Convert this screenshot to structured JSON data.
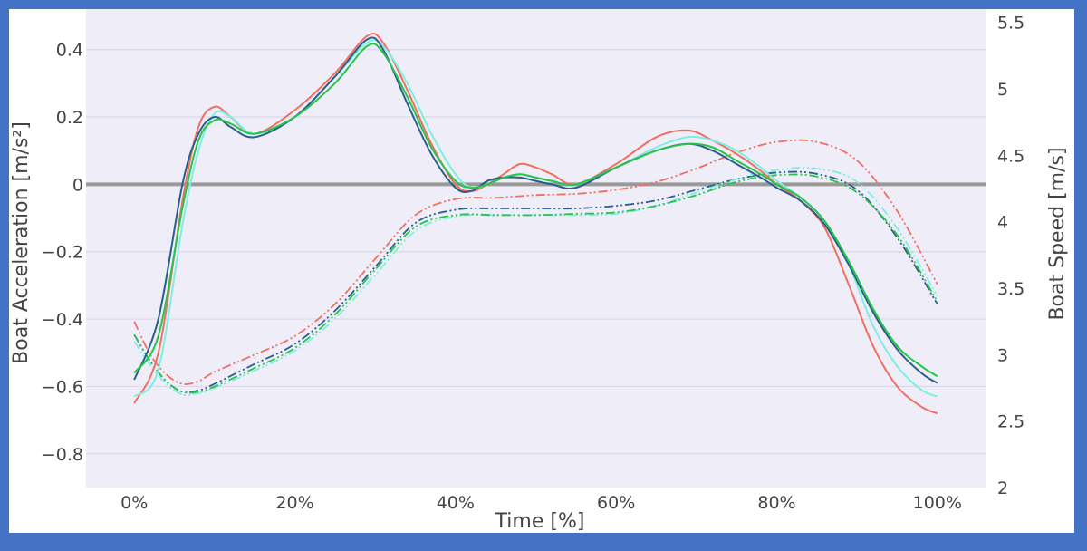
{
  "chart_data": {
    "type": "line",
    "title": "",
    "xlabel": "Time [%]",
    "ylabel_left": "Boat Acceleration [m/s²]",
    "ylabel_right": "Boat Speed [m/s]",
    "x_ticks": [
      "0%",
      "20%",
      "40%",
      "60%",
      "80%",
      "100%"
    ],
    "y_left_ticks": [
      "0.4",
      "0.2",
      "0",
      "−0.2",
      "−0.4",
      "−0.6",
      "−0.8"
    ],
    "y_right_ticks": [
      "5.5",
      "5",
      "4.5",
      "4",
      "3.5",
      "3",
      "2.5",
      "2"
    ],
    "xlim": [
      -6,
      106
    ],
    "ylim_left": [
      -0.9,
      0.52
    ],
    "ylim_right": [
      2.0,
      5.6
    ],
    "grid": true,
    "zero_line_color": "#999999",
    "plot_bg": "#eeedf8",
    "series_acceleration": [
      {
        "color": "#ef6f63",
        "x": [
          0,
          3,
          6,
          8,
          10,
          12,
          15,
          20,
          25,
          29,
          31,
          34,
          37,
          40,
          42,
          44,
          46,
          48,
          50,
          52,
          55,
          60,
          65,
          69,
          72,
          75,
          78,
          80,
          83,
          86,
          89,
          92,
          95,
          98,
          100
        ],
        "y": [
          -0.65,
          -0.5,
          -0.05,
          0.17,
          0.23,
          0.2,
          0.15,
          0.22,
          0.33,
          0.44,
          0.42,
          0.28,
          0.12,
          0.0,
          -0.02,
          0.0,
          0.03,
          0.06,
          0.05,
          0.03,
          0.0,
          0.06,
          0.14,
          0.16,
          0.13,
          0.09,
          0.04,
          0.0,
          -0.05,
          -0.13,
          -0.3,
          -0.48,
          -0.6,
          -0.66,
          -0.68
        ]
      },
      {
        "color": "#7eeee0",
        "x": [
          0,
          3,
          6,
          8,
          10,
          12,
          15,
          20,
          25,
          29,
          31,
          34,
          37,
          40,
          42,
          44,
          46,
          48,
          50,
          52,
          55,
          60,
          65,
          69,
          72,
          75,
          78,
          80,
          83,
          86,
          89,
          92,
          95,
          98,
          100
        ],
        "y": [
          -0.63,
          -0.55,
          -0.12,
          0.1,
          0.21,
          0.2,
          0.15,
          0.2,
          0.32,
          0.42,
          0.41,
          0.3,
          0.15,
          0.03,
          -0.01,
          0.0,
          0.02,
          0.03,
          0.02,
          0.01,
          0.0,
          0.05,
          0.11,
          0.14,
          0.13,
          0.1,
          0.05,
          0.01,
          -0.04,
          -0.11,
          -0.24,
          -0.42,
          -0.54,
          -0.61,
          -0.63
        ]
      },
      {
        "color": "#2a5f8a",
        "x": [
          0,
          3,
          6,
          8,
          10,
          12,
          15,
          20,
          25,
          29,
          31,
          34,
          37,
          40,
          42,
          44,
          46,
          48,
          50,
          52,
          55,
          60,
          65,
          69,
          72,
          75,
          78,
          80,
          83,
          86,
          89,
          92,
          95,
          98,
          100
        ],
        "y": [
          -0.58,
          -0.4,
          0.0,
          0.15,
          0.2,
          0.17,
          0.14,
          0.2,
          0.32,
          0.43,
          0.4,
          0.24,
          0.09,
          -0.01,
          -0.02,
          0.01,
          0.02,
          0.02,
          0.01,
          0.0,
          -0.01,
          0.05,
          0.1,
          0.12,
          0.1,
          0.06,
          0.02,
          -0.01,
          -0.05,
          -0.12,
          -0.24,
          -0.38,
          -0.49,
          -0.56,
          -0.59
        ]
      },
      {
        "color": "#27c44a",
        "x": [
          0,
          3,
          6,
          8,
          10,
          12,
          15,
          20,
          25,
          29,
          31,
          34,
          37,
          40,
          42,
          44,
          46,
          48,
          50,
          52,
          55,
          60,
          65,
          69,
          72,
          75,
          78,
          80,
          83,
          86,
          89,
          92,
          95,
          98,
          100
        ],
        "y": [
          -0.56,
          -0.45,
          -0.07,
          0.13,
          0.19,
          0.18,
          0.15,
          0.2,
          0.3,
          0.41,
          0.39,
          0.26,
          0.11,
          0.01,
          -0.01,
          0.0,
          0.02,
          0.03,
          0.02,
          0.01,
          0.0,
          0.05,
          0.1,
          0.12,
          0.11,
          0.07,
          0.03,
          0.0,
          -0.04,
          -0.11,
          -0.23,
          -0.37,
          -0.48,
          -0.54,
          -0.57
        ]
      }
    ],
    "series_speed": [
      {
        "color": "#ef6f63",
        "x": [
          0,
          2,
          4,
          6,
          8,
          10,
          15,
          20,
          25,
          30,
          35,
          40,
          45,
          50,
          55,
          60,
          65,
          70,
          75,
          80,
          85,
          90,
          95,
          100
        ],
        "y": [
          3.25,
          3.0,
          2.85,
          2.78,
          2.8,
          2.87,
          3.0,
          3.14,
          3.38,
          3.72,
          4.05,
          4.17,
          4.18,
          4.2,
          4.21,
          4.24,
          4.3,
          4.4,
          4.52,
          4.6,
          4.6,
          4.46,
          4.08,
          3.53
        ]
      },
      {
        "color": "#2a5f8a",
        "x": [
          0,
          2,
          4,
          6,
          8,
          10,
          15,
          20,
          25,
          30,
          35,
          40,
          45,
          50,
          55,
          60,
          65,
          70,
          75,
          80,
          85,
          90,
          95,
          100
        ],
        "y": [
          3.15,
          2.95,
          2.8,
          2.72,
          2.73,
          2.78,
          2.93,
          3.08,
          3.33,
          3.66,
          3.99,
          4.09,
          4.1,
          4.1,
          4.1,
          4.12,
          4.16,
          4.24,
          4.32,
          4.37,
          4.36,
          4.24,
          3.88,
          3.38
        ]
      },
      {
        "color": "#7eeee0",
        "x": [
          0,
          2,
          4,
          6,
          8,
          10,
          15,
          20,
          25,
          30,
          35,
          40,
          45,
          50,
          55,
          60,
          65,
          70,
          75,
          80,
          85,
          90,
          95,
          100
        ],
        "y": [
          3.1,
          2.92,
          2.78,
          2.7,
          2.71,
          2.75,
          2.88,
          3.03,
          3.27,
          3.6,
          3.93,
          4.04,
          4.05,
          4.05,
          4.05,
          4.06,
          4.12,
          4.22,
          4.32,
          4.39,
          4.4,
          4.3,
          3.95,
          3.44
        ]
      },
      {
        "color": "#27c44a",
        "x": [
          0,
          2,
          4,
          6,
          8,
          10,
          15,
          20,
          25,
          30,
          35,
          40,
          45,
          50,
          55,
          60,
          65,
          70,
          75,
          80,
          85,
          90,
          95,
          100
        ],
        "y": [
          3.15,
          2.95,
          2.8,
          2.72,
          2.72,
          2.76,
          2.9,
          3.05,
          3.3,
          3.64,
          3.96,
          4.05,
          4.05,
          4.05,
          4.06,
          4.07,
          4.12,
          4.2,
          4.3,
          4.35,
          4.34,
          4.22,
          3.9,
          3.4
        ]
      }
    ]
  }
}
